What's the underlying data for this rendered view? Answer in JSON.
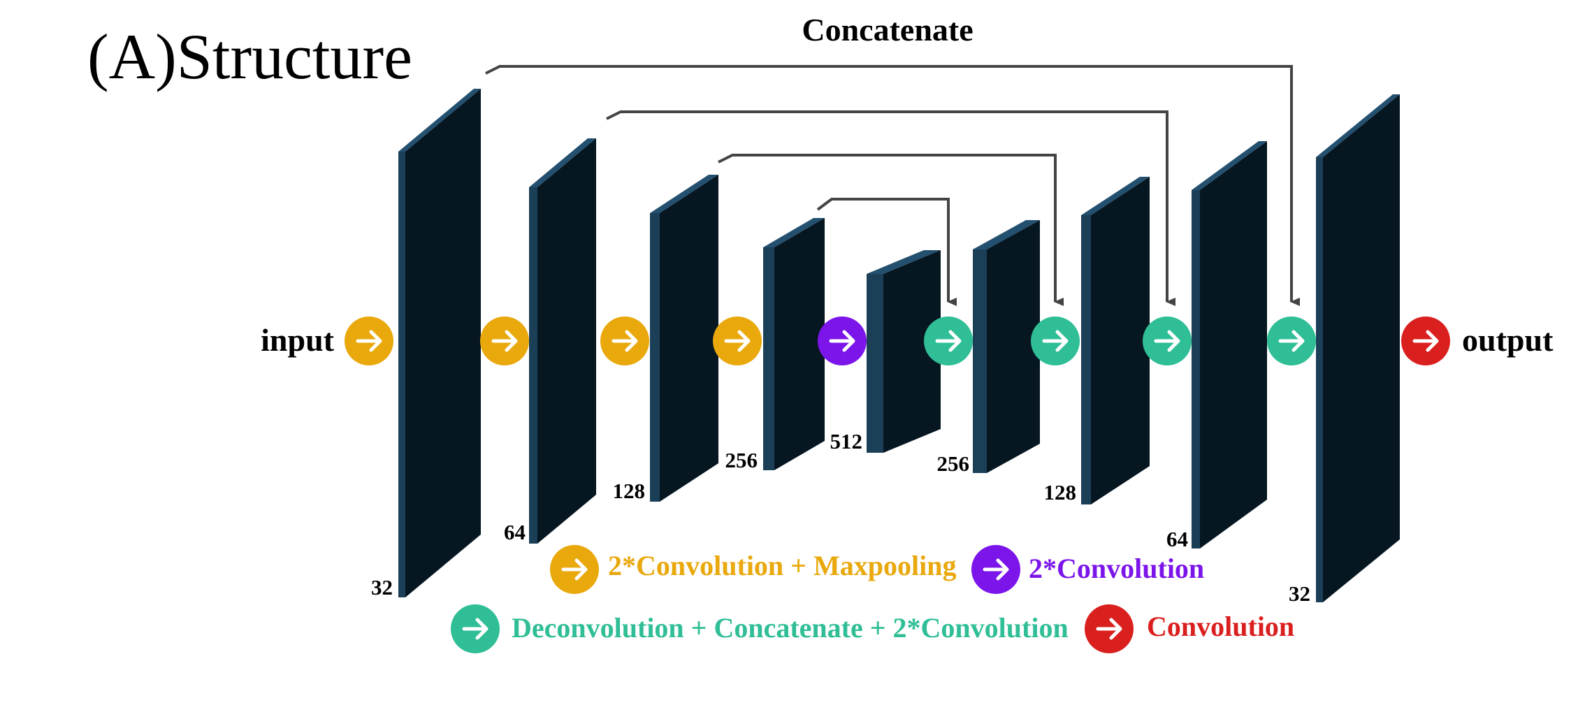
{
  "title": "(A)Structure",
  "concat_label": "Concatenate",
  "input_label": "input",
  "output_label": "output",
  "colors": {
    "block_front": "#061722",
    "block_side": "#1b3f57",
    "block_top": "#245070",
    "conv_pool": "#e9a80c",
    "conv": "#7b15ea",
    "deconv": "#2fbe96",
    "final": "#da1f1f",
    "connector": "#444444"
  },
  "channels": [
    "32",
    "64",
    "128",
    "256",
    "512",
    "256",
    "128",
    "64",
    "32"
  ],
  "legend": {
    "conv_pool": "2*Convolution + Maxpooling",
    "conv": "2*Convolution",
    "deconv": "Deconvolution + Concatenate + 2*Convolution",
    "final": "Convolution"
  },
  "arrow_sequence": [
    "conv_pool",
    "conv_pool",
    "conv_pool",
    "conv_pool",
    "conv",
    "deconv",
    "deconv",
    "deconv",
    "deconv",
    "final"
  ]
}
